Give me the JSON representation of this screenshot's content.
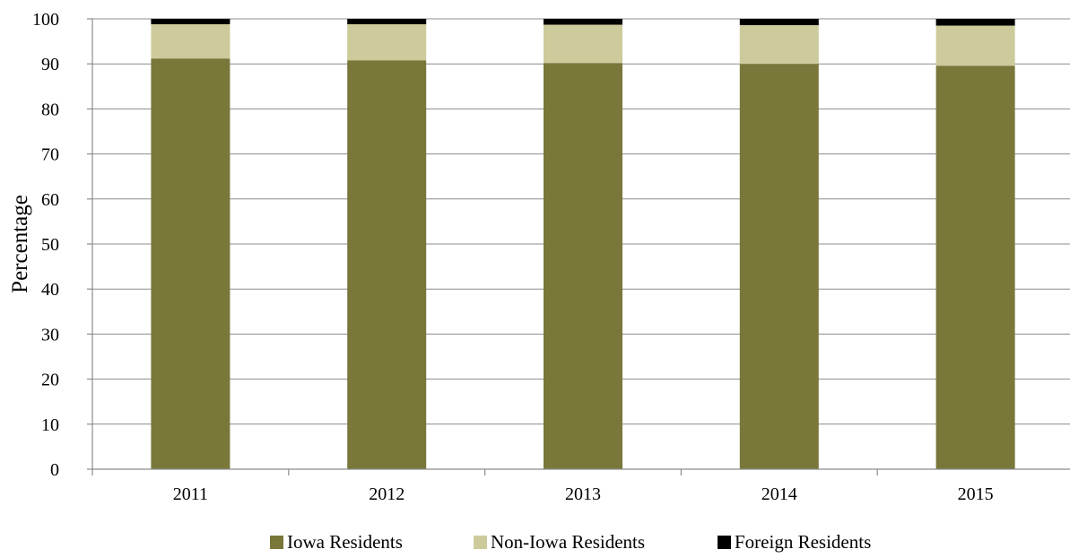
{
  "chart_data": {
    "type": "bar",
    "stacked": true,
    "title": "",
    "xlabel": "",
    "ylabel": "Percentage",
    "ylim": [
      0,
      100
    ],
    "yticks": [
      0,
      10,
      20,
      30,
      40,
      50,
      60,
      70,
      80,
      90,
      100
    ],
    "categories": [
      "2011",
      "2012",
      "2013",
      "2014",
      "2015"
    ],
    "series": [
      {
        "name": "Iowa Residents",
        "color": "#79773a",
        "values": [
          91.2,
          90.8,
          90.2,
          90.0,
          89.6
        ]
      },
      {
        "name": "Non-Iowa Residents",
        "color": "#cdcb9b",
        "values": [
          7.6,
          8.0,
          8.5,
          8.6,
          8.9
        ]
      },
      {
        "name": "Foreign Residents",
        "color": "#000000",
        "values": [
          1.2,
          1.2,
          1.3,
          1.4,
          1.5
        ]
      }
    ],
    "grid": true,
    "legend": "bottom"
  }
}
